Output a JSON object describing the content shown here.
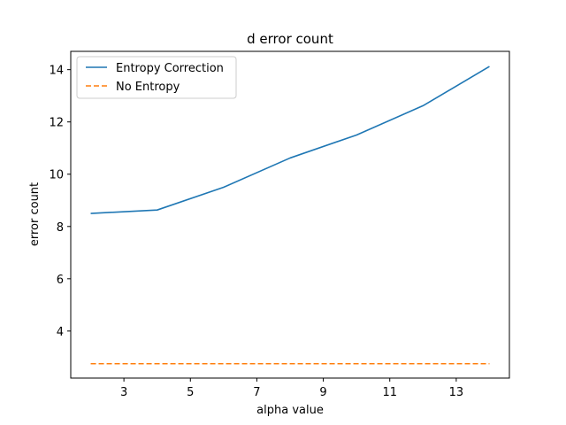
{
  "chart_data": {
    "type": "line",
    "title": "d error count",
    "xlabel": "alpha value",
    "ylabel": "error count",
    "x": [
      2,
      4,
      6,
      8,
      10,
      12,
      14
    ],
    "xlim": [
      1.4,
      14.6
    ],
    "ylim": [
      2.2,
      14.7
    ],
    "xticks": [
      3,
      5,
      7,
      9,
      11,
      13
    ],
    "yticks": [
      4,
      6,
      8,
      10,
      12,
      14
    ],
    "grid": false,
    "legend_position": "upper-left",
    "series": [
      {
        "name": "Entropy Correction",
        "color": "#1f77b4",
        "style": "solid",
        "values": [
          8.5,
          8.63,
          9.5,
          10.62,
          11.5,
          12.62,
          14.12
        ]
      },
      {
        "name": "No Entropy",
        "color": "#ff7f0e",
        "style": "dashed",
        "values": [
          2.75,
          2.75,
          2.75,
          2.75,
          2.75,
          2.75,
          2.75
        ]
      }
    ]
  }
}
